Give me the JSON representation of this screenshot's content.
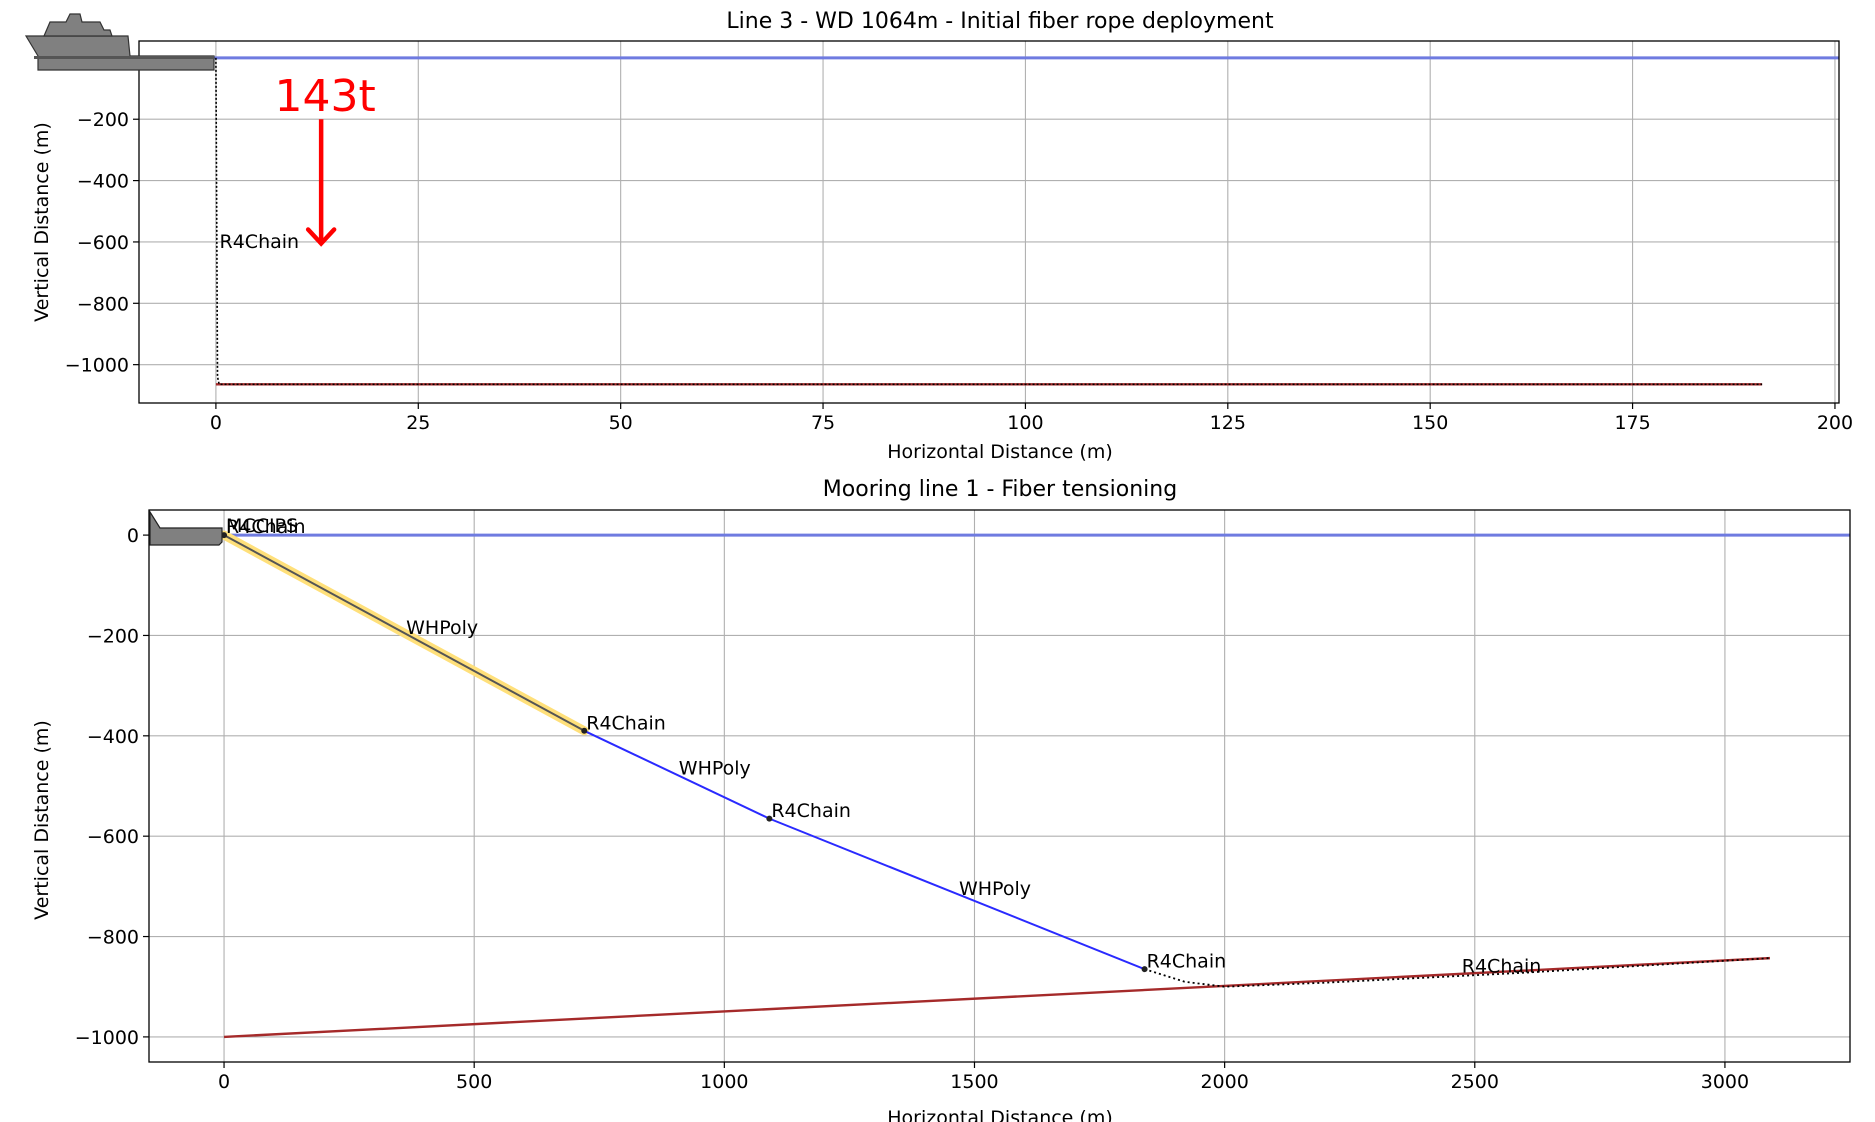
{
  "colors": {
    "water": "#6f7be0",
    "seabed": "#a52a2a",
    "chain": "#000000",
    "poly_deployed": "#2a2aff",
    "poly_highlight": "#ffe07a",
    "annotation": "#ff0000",
    "vessel": "#808080"
  },
  "chart_data": [
    {
      "type": "line",
      "title": "Line 3 - WD 1064m - Initial fiber rope deployment",
      "xlabel": "Horizontal Distance (m)",
      "ylabel": "Vertical Distance (m)",
      "xlim": [
        -9.5,
        200.5
      ],
      "ylim": [
        -1125,
        55
      ],
      "xticks": [
        0,
        25,
        50,
        75,
        100,
        125,
        150,
        175,
        200
      ],
      "yticks": [
        -1000,
        -800,
        -600,
        -400,
        -200
      ],
      "xtick_labels": [
        "0",
        "25",
        "50",
        "75",
        "100",
        "125",
        "150",
        "175",
        "200"
      ],
      "ytick_labels": [
        "−1000",
        "−800",
        "−600",
        "−400",
        "−200"
      ],
      "grid": true,
      "water_level": 0,
      "seabed": {
        "x": [
          0,
          191
        ],
        "y": [
          -1064,
          -1064
        ]
      },
      "mooring": {
        "x": [
          0,
          0.2,
          0.4,
          191
        ],
        "y": [
          0,
          -1040,
          -1064,
          -1064
        ],
        "style": "dotted"
      },
      "labels": [
        {
          "text": "R4Chain",
          "x": 0.2,
          "y": -600
        }
      ],
      "annotation": {
        "text": "143t",
        "x": 13,
        "y_start": -200,
        "y_end": -605
      }
    },
    {
      "type": "line",
      "title": "Mooring line 1 - Fiber tensioning",
      "xlabel": "Horizontal Distance (m)",
      "ylabel": "Vertical Distance (m)",
      "xlim": [
        -150,
        3250
      ],
      "ylim": [
        -1050,
        50
      ],
      "xticks": [
        0,
        500,
        1000,
        1500,
        2000,
        2500,
        3000
      ],
      "yticks": [
        -1000,
        -800,
        -600,
        -400,
        -200,
        0
      ],
      "xtick_labels": [
        "0",
        "500",
        "1000",
        "1500",
        "2000",
        "2500",
        "3000"
      ],
      "ytick_labels": [
        "−1000",
        "−800",
        "−600",
        "−400",
        "−200",
        "0"
      ],
      "grid": true,
      "water_level": 0,
      "seabed": {
        "x": [
          0,
          3090
        ],
        "y": [
          -1000,
          -843
        ]
      },
      "segments": [
        {
          "name": "WHPoly",
          "x": [
            0,
            720
          ],
          "y": [
            0,
            -390
          ],
          "highlight": true
        },
        {
          "name": "WHPoly",
          "x": [
            720,
            1090
          ],
          "y": [
            -390,
            -565
          ]
        },
        {
          "name": "WHPoly",
          "x": [
            1090,
            1840
          ],
          "y": [
            -565,
            -865
          ]
        },
        {
          "name": "R4Chain",
          "x": [
            1840,
            1920,
            2000,
            2200,
            2600,
            3090
          ],
          "y": [
            -865,
            -890,
            -900,
            -892,
            -872,
            -843
          ],
          "style": "dotted"
        }
      ],
      "nodes": [
        {
          "x": 0,
          "y": 0
        },
        {
          "x": 720,
          "y": -390
        },
        {
          "x": 1090,
          "y": -565
        },
        {
          "x": 1840,
          "y": -865
        }
      ],
      "labels": [
        {
          "text": "MCCIPS",
          "x": 0,
          "y": 18
        },
        {
          "text": "R4Chain",
          "x": 0,
          "y": 16
        },
        {
          "text": "WHPoly",
          "x": 360,
          "y": -185
        },
        {
          "text": "R4Chain",
          "x": 720,
          "y": -375
        },
        {
          "text": "WHPoly",
          "x": 905,
          "y": -465
        },
        {
          "text": "R4Chain",
          "x": 1090,
          "y": -550
        },
        {
          "text": "WHPoly",
          "x": 1465,
          "y": -705
        },
        {
          "text": "R4Chain",
          "x": 1840,
          "y": -850
        },
        {
          "text": "R4Chain",
          "x": 2470,
          "y": -860
        }
      ]
    }
  ]
}
